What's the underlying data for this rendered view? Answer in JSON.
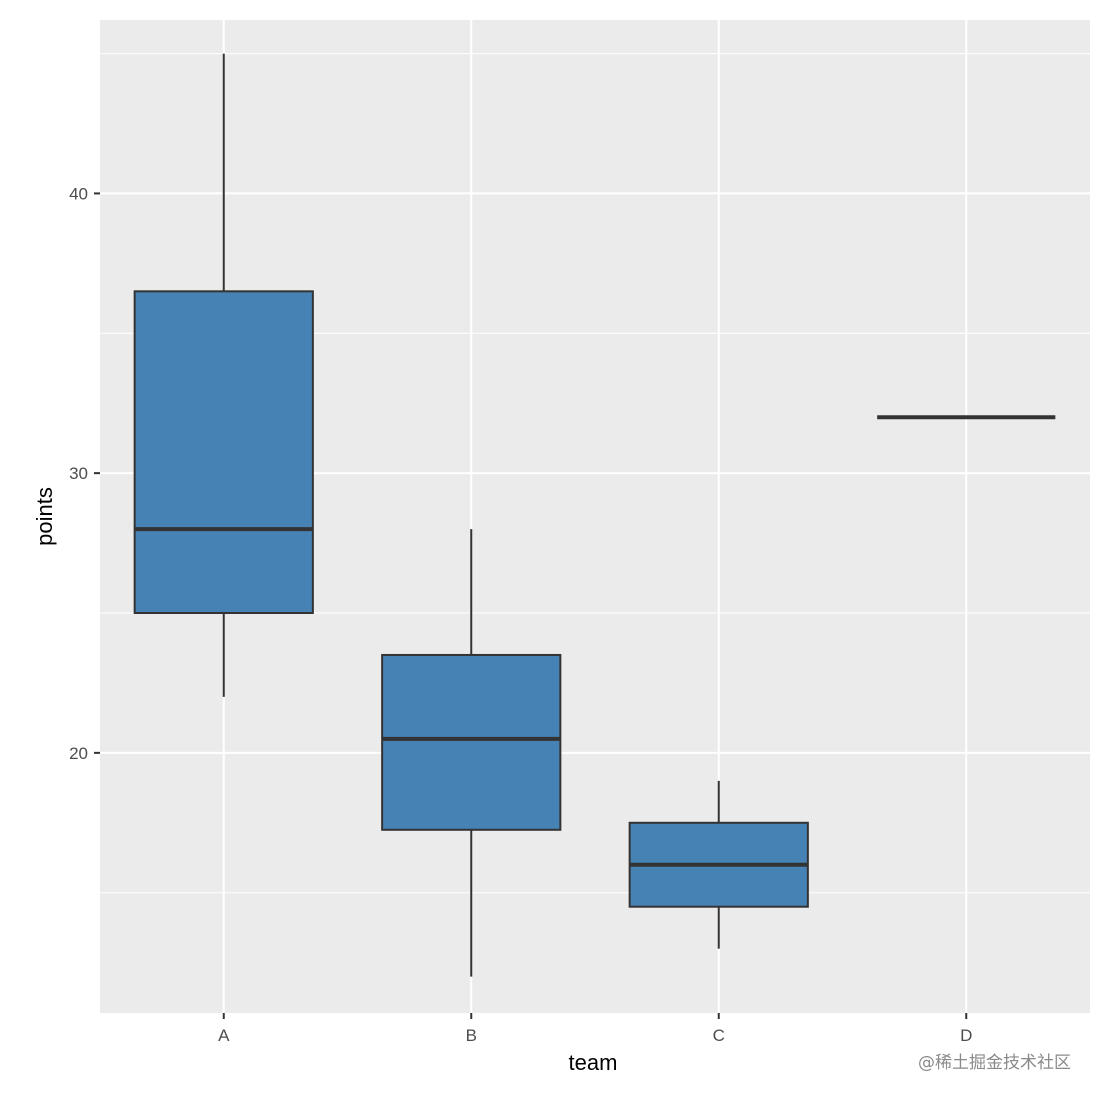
{
  "chart_data": {
    "type": "boxplot",
    "title": "",
    "xlabel": "team",
    "ylabel": "points",
    "categories": [
      "A",
      "B",
      "C",
      "D"
    ],
    "boxes": [
      {
        "category": "A",
        "min": 22,
        "q1": 25,
        "median": 28,
        "q3": 36.5,
        "max": 45
      },
      {
        "category": "B",
        "min": 12,
        "q1": 17.25,
        "median": 20.5,
        "q3": 23.5,
        "max": 28
      },
      {
        "category": "C",
        "min": 13,
        "q1": 14.5,
        "median": 16,
        "q3": 17.5,
        "max": 19
      },
      {
        "category": "D",
        "min": 32,
        "q1": 32,
        "median": 32,
        "q3": 32,
        "max": 32
      }
    ],
    "yticks": [
      20,
      30,
      40
    ],
    "ylim": [
      10.7,
      46.2
    ],
    "grid": true,
    "colors": {
      "box_fill": "#4682b4",
      "box_stroke": "#333333",
      "panel_background": "#ebebeb",
      "grid": "#ffffff"
    }
  },
  "watermark": "@稀土掘金技术社区"
}
